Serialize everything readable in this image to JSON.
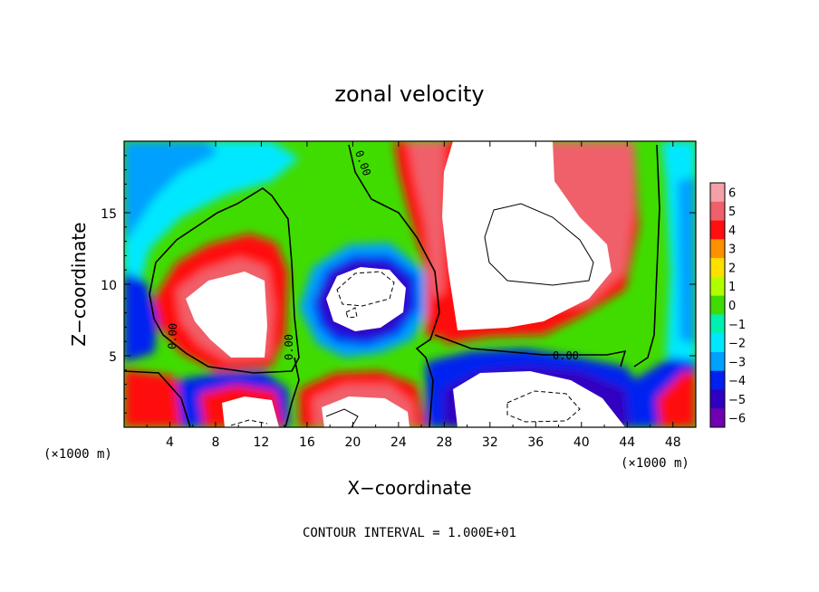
{
  "chart_data": {
    "type": "heatmap",
    "title": "zonal velocity",
    "xlabel": "X−coordinate",
    "ylabel": "Z−coordinate",
    "x_unit": "(×1000 m)",
    "y_unit": "(×1000 m)",
    "xlim": [
      0,
      50
    ],
    "ylim": [
      0,
      20
    ],
    "x_ticks": [
      4,
      8,
      12,
      16,
      20,
      24,
      28,
      32,
      36,
      40,
      44,
      48
    ],
    "y_ticks": [
      5,
      10,
      15
    ],
    "colorbar": {
      "ticks": [
        6,
        5,
        4,
        3,
        2,
        1,
        0,
        -1,
        -2,
        -3,
        -4,
        -5,
        -6
      ],
      "tick_labels": [
        "6",
        "5",
        "4",
        "3",
        "2",
        "1",
        "0",
        "−1",
        "−2",
        "−3",
        "−4",
        "−5",
        "−6"
      ],
      "range": [
        -6,
        6
      ]
    },
    "contour_labels": [
      "0.00",
      "0.00",
      "0.00",
      "0.00"
    ],
    "footer": "CONTOUR INTERVAL = 1.000E+01",
    "colors": {
      "c6": "#f4a0a8",
      "c5": "#f0606a",
      "c4": "#ff1010",
      "c3": "#ff9000",
      "c2": "#ffe000",
      "c1": "#b0ff00",
      "c0": "#40dc00",
      "cm1": "#00f0b0",
      "cm2": "#00e8ff",
      "cm3": "#00a0ff",
      "cm4": "#0020f0",
      "cm5": "#3000c0",
      "cm6": "#7000b0",
      "sat": "#ffffff"
    }
  }
}
